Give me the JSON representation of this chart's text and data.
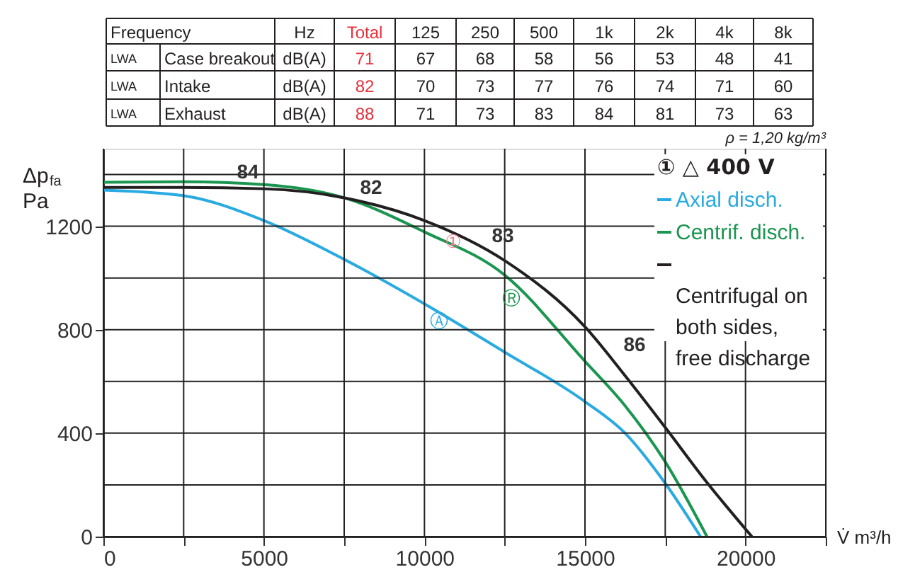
{
  "chart_data": {
    "type": "line",
    "xlabel": "V̇ m³/h",
    "ylabel": "Δp$_{fa}$ Pa",
    "legend_title": "① △ 400 V",
    "xlim": [
      0,
      22500
    ],
    "ylim": [
      0,
      1500
    ],
    "xticks": [
      0,
      {
        "value": 2500,
        "label": null
      },
      5000,
      {
        "value": 7500,
        "label": null
      },
      10000,
      {
        "value": 12500,
        "label": null
      },
      15000,
      {
        "value": 17500,
        "label": null
      },
      20000,
      {
        "value": 22500,
        "label": null
      }
    ],
    "yticks": [
      0,
      {
        "value": 200,
        "label": null
      },
      400,
      {
        "value": 600,
        "label": null
      },
      800,
      {
        "value": 1000,
        "label": null
      },
      1200,
      {
        "value": 1400,
        "label": null
      }
    ],
    "grid": true,
    "legend": "top right",
    "marker": "none",
    "line_style": "solid",
    "series": [
      {
        "name": "Axial disch.",
        "color": "#29aae1",
        "x": [
          0,
          2500,
          5000,
          7500,
          10000,
          12500,
          15000,
          16250,
          17500,
          18600
        ],
        "values": [
          1340,
          1318,
          1222,
          1072,
          900,
          713,
          522,
          400,
          206,
          0
        ]
      },
      {
        "name": "Centrif. disch.",
        "color": "#1a9650",
        "x": [
          0,
          2500,
          5000,
          7500,
          10000,
          12500,
          15000,
          16250,
          17500,
          18800
        ],
        "values": [
          1370,
          1372,
          1361,
          1310,
          1178,
          1011,
          678,
          506,
          289,
          0
        ]
      },
      {
        "name": "Centrifugal on both sides, free discharge",
        "color": "#231f20",
        "x": [
          0,
          2500,
          5000,
          7500,
          10000,
          12500,
          15000,
          16250,
          17500,
          18750,
          20200
        ],
        "values": [
          1350,
          1350,
          1345,
          1310,
          1222,
          1067,
          811,
          622,
          422,
          217,
          0
        ]
      }
    ],
    "annotations": [
      "Frequency",
      "Hz",
      "Total",
      "125",
      "250",
      "500",
      "1k",
      "2k",
      "4k",
      "8k",
      "LWA",
      "Case breakout",
      "dB(A)",
      "71",
      "67",
      "68",
      "58",
      "56",
      "53",
      "48",
      "41",
      "LWA",
      "Intake",
      "dB(A)",
      "82",
      "70",
      "73",
      "77",
      "76",
      "74",
      "71",
      "60",
      "LWA",
      "Exhaust",
      "dB(A)",
      "88",
      "71",
      "73",
      "83",
      "84",
      "81",
      "73",
      "63",
      "ρ = 1,20 kg/m³",
      "84",
      "82",
      "83",
      "86",
      "①",
      "Ⓐ",
      "Ⓡ"
    ]
  }
}
